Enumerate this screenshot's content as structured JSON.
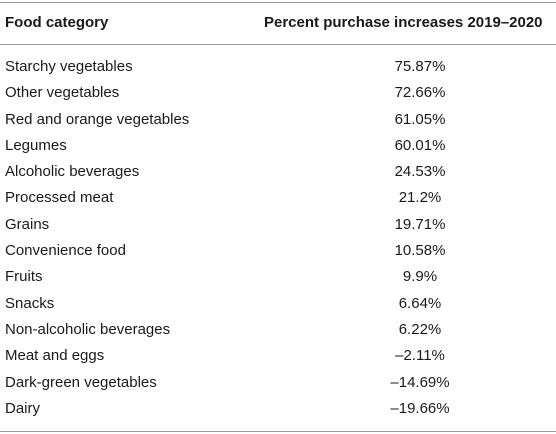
{
  "table": {
    "headers": {
      "category": "Food category",
      "increase": "Percent purchase increases 2019–2020"
    },
    "rows": [
      {
        "category": "Starchy vegetables",
        "increase": "75.87%"
      },
      {
        "category": "Other vegetables",
        "increase": "72.66%"
      },
      {
        "category": "Red and orange vegetables",
        "increase": "61.05%"
      },
      {
        "category": "Legumes",
        "increase": "60.01%"
      },
      {
        "category": "Alcoholic beverages",
        "increase": "24.53%"
      },
      {
        "category": "Processed meat",
        "increase": "21.2%"
      },
      {
        "category": "Grains",
        "increase": "19.71%"
      },
      {
        "category": "Convenience food",
        "increase": "10.58%"
      },
      {
        "category": "Fruits",
        "increase": "9.9%"
      },
      {
        "category": "Snacks",
        "increase": "6.64%"
      },
      {
        "category": "Non-alcoholic beverages",
        "increase": "6.22%"
      },
      {
        "category": "Meat and eggs",
        "increase": "–2.11%"
      },
      {
        "category": "Dark-green vegetables",
        "increase": "–14.69%"
      },
      {
        "category": "Dairy",
        "increase": "–19.66%"
      }
    ]
  }
}
